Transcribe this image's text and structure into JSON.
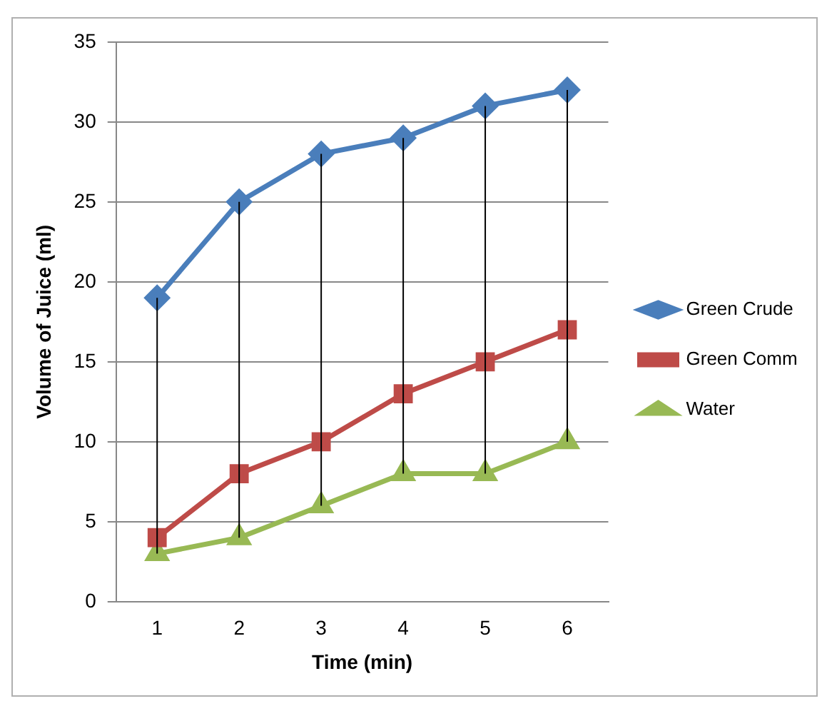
{
  "chart_data": {
    "type": "line",
    "xlabel": "Time (min)",
    "ylabel": "Volume of Juice (ml)",
    "categories": [
      "1",
      "2",
      "3",
      "4",
      "5",
      "6"
    ],
    "series": [
      {
        "name": "Green Crude",
        "color": "#4a7ebb",
        "marker": "diamond",
        "values": [
          19,
          25,
          28,
          29,
          31,
          32
        ],
        "errors": [
          [
            3,
            19
          ],
          [
            4,
            25
          ],
          [
            6,
            28
          ],
          [
            8,
            29
          ],
          [
            8,
            31
          ],
          [
            10,
            32
          ]
        ]
      },
      {
        "name": "Green Comm",
        "color": "#be4b48",
        "marker": "square",
        "values": [
          4,
          8,
          10,
          13,
          15,
          17
        ]
      },
      {
        "name": "Water",
        "color": "#98b954",
        "marker": "triangle",
        "values": [
          3,
          4,
          6,
          8,
          8,
          10
        ]
      }
    ],
    "ylim": [
      0,
      35
    ],
    "yticks": [
      0,
      5,
      10,
      15,
      20,
      25,
      30,
      35
    ],
    "grid": "y",
    "legend": "right"
  }
}
